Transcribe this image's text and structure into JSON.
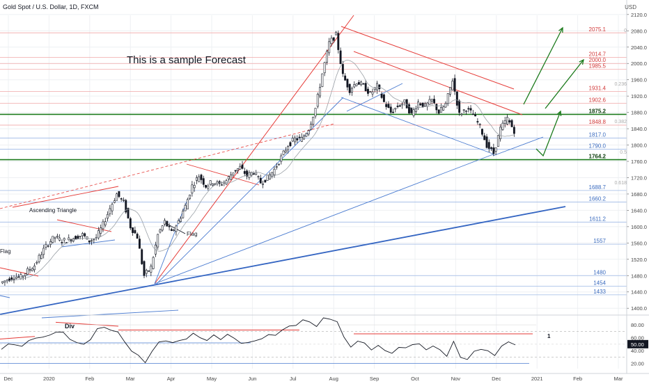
{
  "header": {
    "symbol_title": "Gold Spot / U.S. Dollar, 1D, FXCM",
    "currency": "USD"
  },
  "annotations": {
    "forecast_text": "This is a sample Forecast",
    "ascending_triangle": "Ascending Triangle",
    "flag_left": "Flag",
    "flag_mid": "Flag",
    "div_label": "Div",
    "rsi_marker": "1",
    "fib_labels": [
      "0",
      "0.236",
      "0.382",
      "0.5",
      "0.618"
    ]
  },
  "colors": {
    "up": "#26a69a",
    "down": "#ef5350",
    "candle": "#131722",
    "red_line": "#e53935",
    "blue_line": "#4a7bd0",
    "green_line": "#1b7a1b",
    "red_level": "#f1a7a7",
    "blue_level": "#9db8e6",
    "grid": "#eef0f3"
  },
  "chart_data": {
    "type": "candlestick",
    "title": "Gold Spot / U.S. Dollar, 1D, FXCM",
    "ylim": [
      1385,
      2118
    ],
    "y_ticks": [
      2120,
      2080,
      2040,
      2000,
      1960,
      1920,
      1880,
      1840,
      1800,
      1760,
      1720,
      1680,
      1640,
      1600,
      1560,
      1520,
      1480,
      1440,
      1400
    ],
    "x_ticks": [
      "Dec",
      "2020",
      "Feb",
      "Mar",
      "Apr",
      "May",
      "Jun",
      "Jul",
      "Aug",
      "Sep",
      "Oct",
      "Nov",
      "Dec",
      "2021",
      "Feb",
      "Mar"
    ],
    "price_path": [
      1462,
      1470,
      1478,
      1476,
      1492,
      1505,
      1535,
      1560,
      1575,
      1565,
      1568,
      1575,
      1580,
      1565,
      1573,
      1605,
      1645,
      1680,
      1660,
      1600,
      1575,
      1480,
      1500,
      1580,
      1612,
      1585,
      1613,
      1650,
      1700,
      1725,
      1700,
      1710,
      1703,
      1713,
      1735,
      1745,
      1725,
      1735,
      1708,
      1720,
      1740,
      1770,
      1800,
      1815,
      1815,
      1840,
      1890,
      1975,
      2050,
      2070,
      1970,
      1935,
      1955,
      1945,
      1925,
      1945,
      1905,
      1880,
      1895,
      1905,
      1875,
      1905,
      1895,
      1910,
      1880,
      1900,
      1960,
      1875,
      1890,
      1875,
      1845,
      1800,
      1780,
      1840,
      1865,
      1835
    ],
    "levels": [
      {
        "label": "2075.1",
        "value": 2075.1,
        "color": "red"
      },
      {
        "label": "2014.7",
        "value": 2014.7,
        "color": "red"
      },
      {
        "label": "2000.0",
        "value": 2000.0,
        "color": "red"
      },
      {
        "label": "1985.5",
        "value": 1985.5,
        "color": "red"
      },
      {
        "label": "1931.4",
        "value": 1931.4,
        "color": "red"
      },
      {
        "label": "1902.6",
        "value": 1902.6,
        "color": "red"
      },
      {
        "label": "1875.2",
        "value": 1875.2,
        "color": "green"
      },
      {
        "label": "1848.8",
        "value": 1848.8,
        "color": "red"
      },
      {
        "label": "1817.0",
        "value": 1817.0,
        "color": "blue"
      },
      {
        "label": "1790.0",
        "value": 1790.0,
        "color": "blue"
      },
      {
        "label": "1764.2",
        "value": 1764.2,
        "color": "green"
      },
      {
        "label": "1688.7",
        "value": 1688.7,
        "color": "blue"
      },
      {
        "label": "1660.2",
        "value": 1660.2,
        "color": "blue"
      },
      {
        "label": "1611.2",
        "value": 1611.2,
        "color": "blue"
      },
      {
        "label": "1557",
        "value": 1557,
        "color": "blue"
      },
      {
        "label": "1480",
        "value": 1480,
        "color": "blue"
      },
      {
        "label": "1454",
        "value": 1454,
        "color": "blue"
      },
      {
        "label": "1433",
        "value": 1433,
        "color": "blue"
      }
    ],
    "rsi": {
      "ylim": [
        12,
        92
      ],
      "y_ticks": [
        "80.00",
        "60.00",
        "40.00",
        "20.00"
      ],
      "y_tick_values": [
        80,
        60,
        40,
        20
      ],
      "current_label": "50.00",
      "current_value": 50,
      "path": [
        42,
        48,
        52,
        45,
        55,
        62,
        58,
        65,
        70,
        66,
        60,
        52,
        48,
        60,
        72,
        76,
        74,
        66,
        55,
        40,
        30,
        24,
        38,
        52,
        58,
        50,
        56,
        60,
        64,
        62,
        56,
        62,
        60,
        64,
        58,
        54,
        50,
        56,
        60,
        62,
        66,
        72,
        76,
        82,
        86,
        84,
        80,
        88,
        90,
        86,
        58,
        48,
        54,
        50,
        44,
        46,
        40,
        38,
        42,
        46,
        50,
        48,
        44,
        46,
        40,
        34,
        52,
        30,
        28,
        36,
        44,
        40,
        30,
        50,
        52,
        48
      ]
    }
  }
}
